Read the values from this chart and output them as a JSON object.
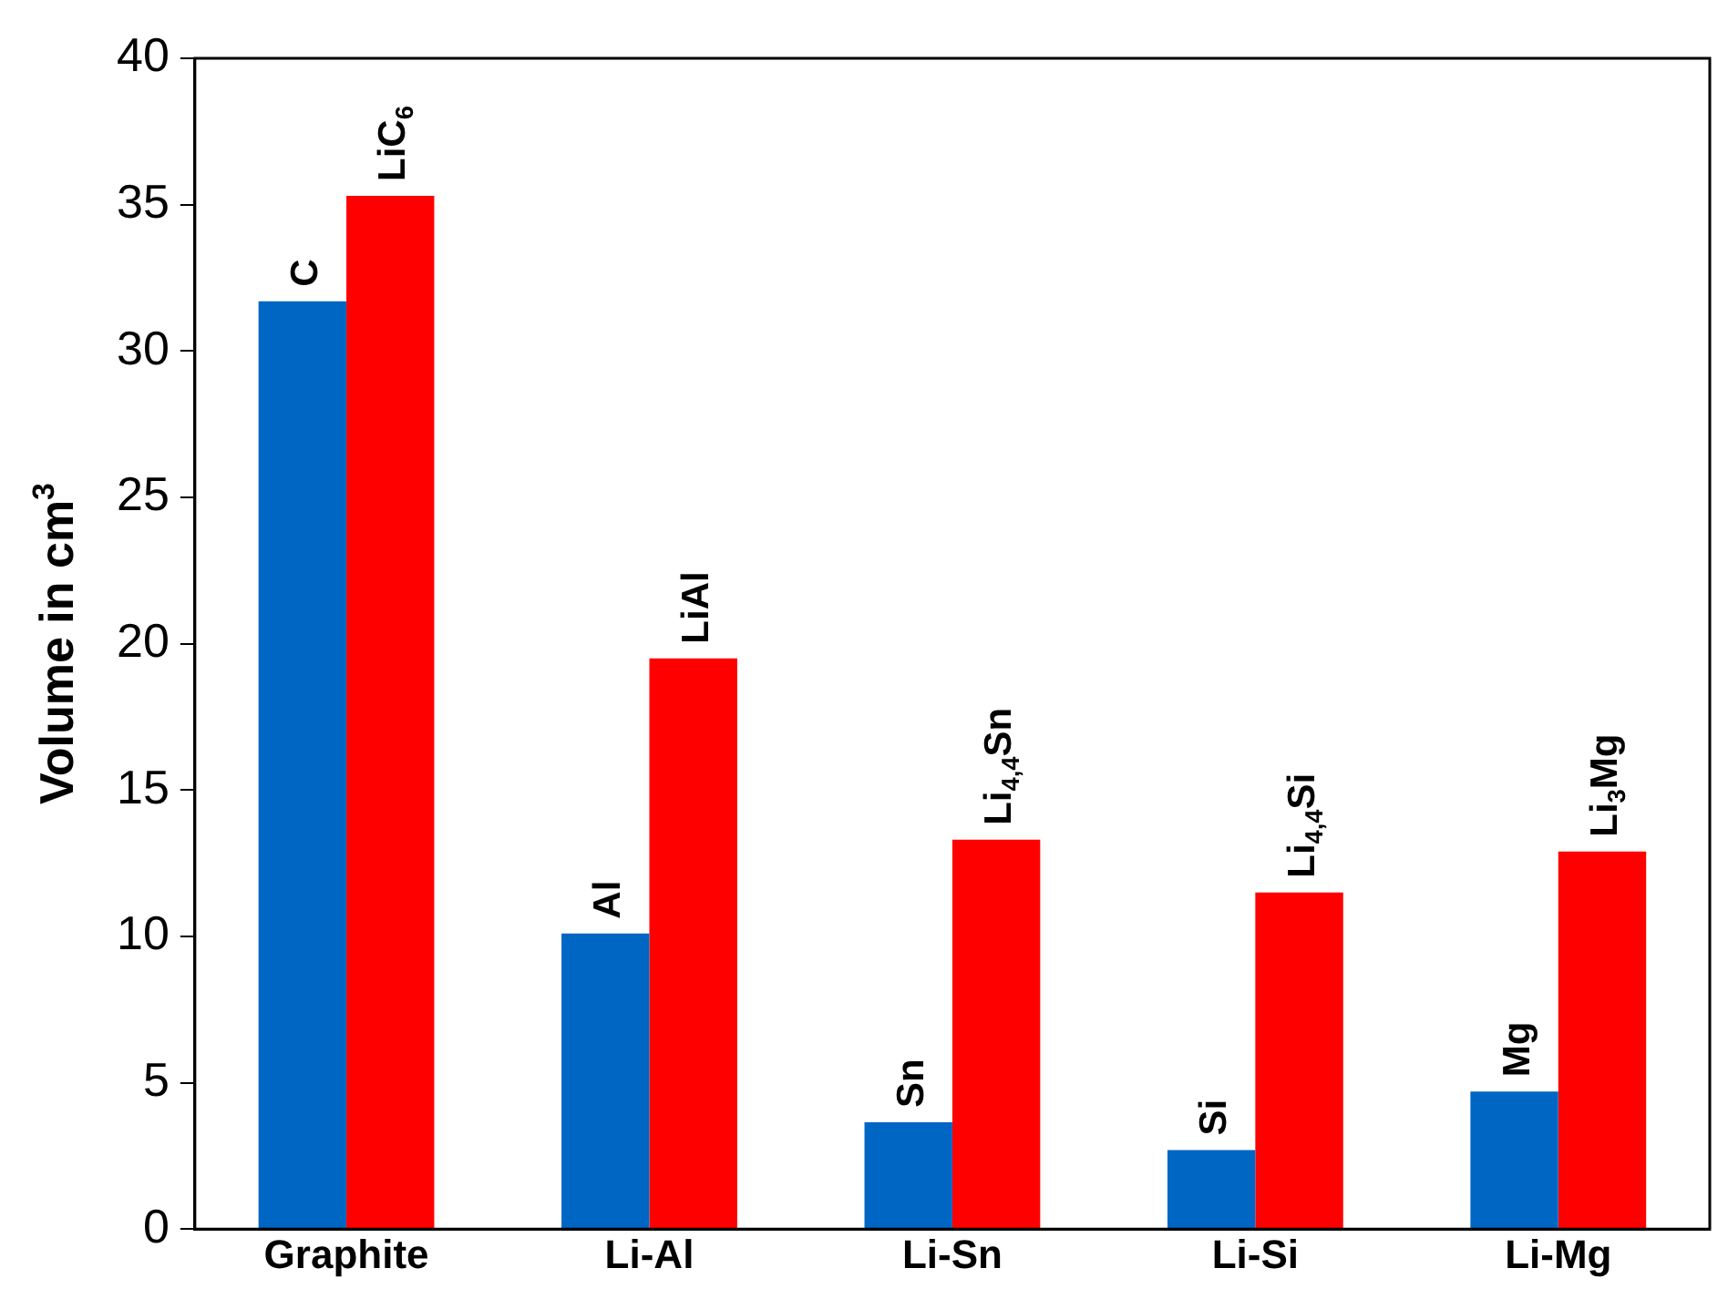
{
  "chart_data": {
    "type": "bar",
    "ylabel": "Volume in cm$^{3}$",
    "categories": [
      "Graphite",
      "Li-Al",
      "Li-Sn",
      "Li-Si",
      "Li-Mg"
    ],
    "series": [
      {
        "color": "#0066c4",
        "values": [
          31.7,
          10.1,
          3.65,
          2.7,
          4.7
        ]
      },
      {
        "color": "#ff0000",
        "values": [
          35.3,
          19.5,
          13.3,
          11.5,
          12.9
        ]
      }
    ],
    "ylim": [
      0,
      40
    ],
    "yticks": [
      0,
      5,
      10,
      15,
      20,
      25,
      30,
      35,
      40
    ],
    "grid": false,
    "legend": false,
    "annotations": [
      {
        "text": "C",
        "x": "Graphite",
        "y": 31.7
      },
      {
        "text": "LiC$_{6}$",
        "x": "Graphite",
        "y": 35.3
      },
      {
        "text": "Al",
        "x": "Li-Al",
        "y": 10.1
      },
      {
        "text": "LiAl",
        "x": "Li-Al",
        "y": 19.5
      },
      {
        "text": "Sn",
        "x": "Li-Sn",
        "y": 3.65
      },
      {
        "text": "Li$_{4,4}$Sn",
        "x": "Li-Sn",
        "y": 13.3
      },
      {
        "text": "Si",
        "x": "Li-Si",
        "y": 2.7
      },
      {
        "text": "Li$_{4,4}$Si",
        "x": "Li-Si",
        "y": 11.5
      },
      {
        "text": "Mg",
        "x": "Li-Mg",
        "y": 4.7
      },
      {
        "text": "Li$_{3}$Mg",
        "x": "Li-Mg",
        "y": 12.9
      }
    ]
  }
}
